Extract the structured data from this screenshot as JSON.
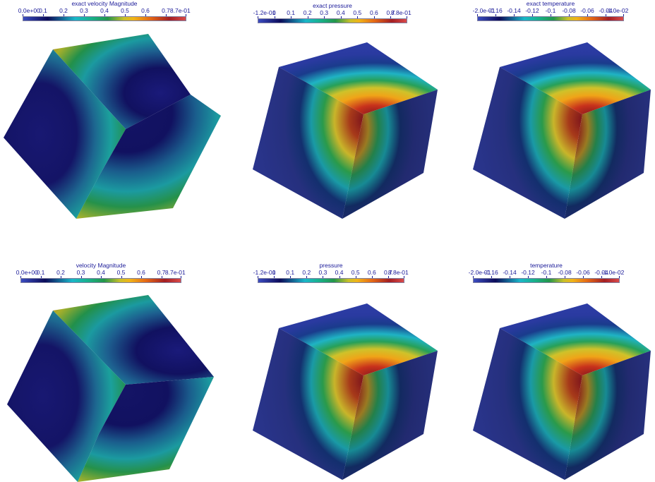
{
  "panels": [
    {
      "title": "exact velocity Magnitude",
      "ticks": [
        "0.0e+00",
        "0.1",
        "0.2",
        "0.3",
        "0.4",
        "0.5",
        "0.6",
        "0.7",
        "8.7e-01"
      ]
    },
    {
      "title": "exact pressure",
      "ticks": [
        "-1.2e-01",
        "0",
        "0.1",
        "0.2",
        "0.3",
        "0.4",
        "0.5",
        "0.6",
        "0.7",
        "8.8e-01"
      ]
    },
    {
      "title": "exact temperature",
      "ticks": [
        "-2.0e-01",
        "-0.16",
        "-0.14",
        "-0.12",
        "-0.1",
        "-0.08",
        "-0.06",
        "-0.04",
        "-1.0e-02"
      ]
    },
    {
      "title": "velocity Magnitude",
      "ticks": [
        "0.0e+00",
        "0.1",
        "0.2",
        "0.3",
        "0.4",
        "0.5",
        "0.6",
        "0.7",
        "8.7e-01"
      ]
    },
    {
      "title": "pressure",
      "ticks": [
        "-1.2e-01",
        "0",
        "0.1",
        "0.2",
        "0.3",
        "0.4",
        "0.5",
        "0.6",
        "0.7",
        "8.8e-01"
      ]
    },
    {
      "title": "temperature",
      "ticks": [
        "-2.0e-01",
        "-0.16",
        "-0.14",
        "-0.12",
        "-0.1",
        "-0.08",
        "-0.06",
        "-0.04",
        "-1.0e-02"
      ]
    }
  ],
  "colors": {
    "colormap": [
      "#3b4cc0",
      "#0b0b59",
      "#1ab7c8",
      "#18b08a",
      "#23964a",
      "#c9c02a",
      "#f0b418",
      "#e56a16",
      "#a41e22"
    ],
    "text": "#1b1b99",
    "background": "#ffffff"
  }
}
